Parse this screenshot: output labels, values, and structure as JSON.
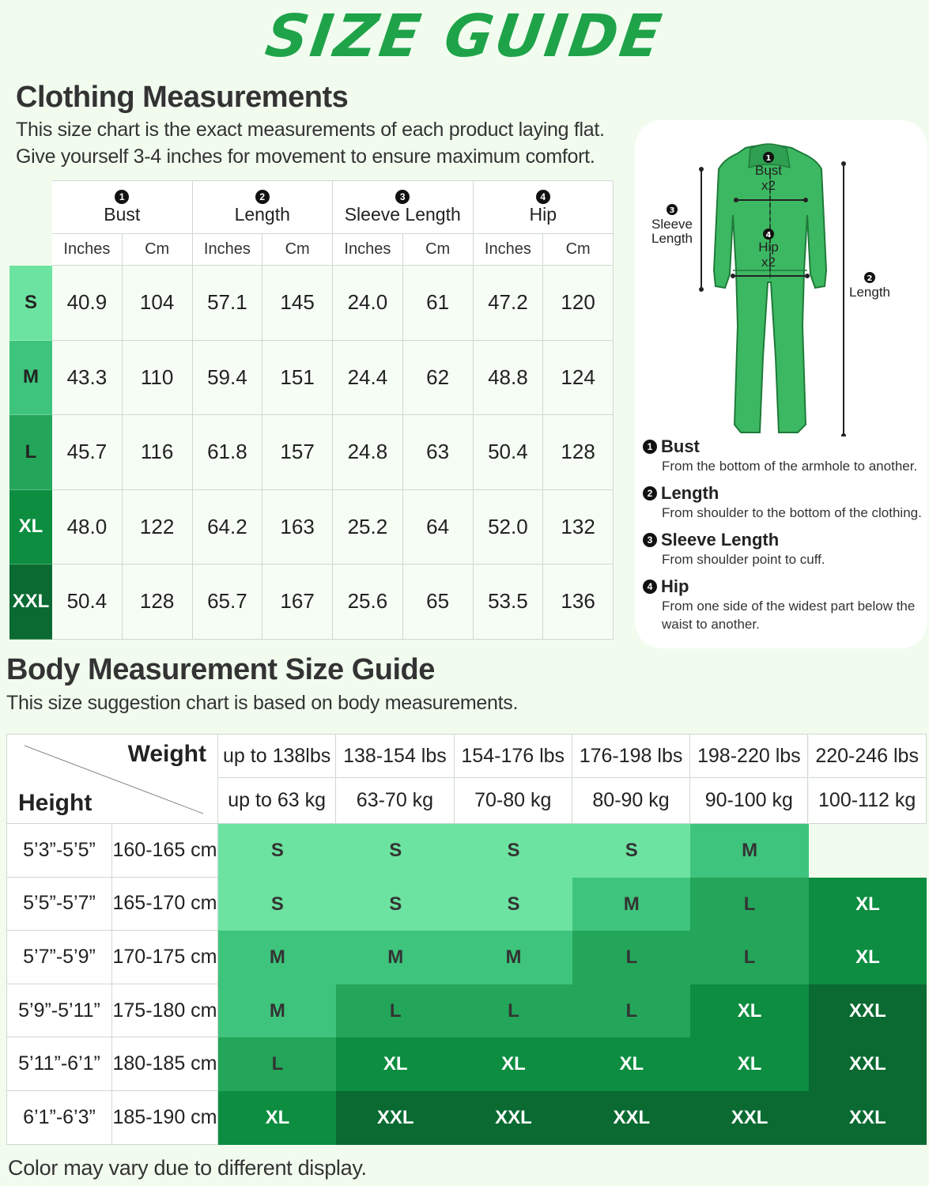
{
  "title": "SIZE GUIDE",
  "clothing": {
    "heading": "Clothing Measurements",
    "line1": "This size chart is the exact measurements of each product laying flat.",
    "line2": "Give yourself 3-4 inches for movement to ensure maximum comfort.",
    "groups": [
      {
        "num": "1",
        "label": "Bust"
      },
      {
        "num": "2",
        "label": "Length"
      },
      {
        "num": "3",
        "label": "Sleeve Length"
      },
      {
        "num": "4",
        "label": "Hip"
      }
    ],
    "units": [
      "Inches",
      "Cm",
      "Inches",
      "Cm",
      "Inches",
      "Cm",
      "Inches",
      "Cm"
    ],
    "rows": [
      {
        "size": "S",
        "color": "#6de3a1",
        "values": [
          "40.9",
          "104",
          "57.1",
          "145",
          "24.0",
          "61",
          "47.2",
          "120"
        ]
      },
      {
        "size": "M",
        "color": "#3ec47c",
        "values": [
          "43.3",
          "110",
          "59.4",
          "151",
          "24.4",
          "62",
          "48.8",
          "124"
        ]
      },
      {
        "size": "L",
        "color": "#24a65a",
        "values": [
          "45.7",
          "116",
          "61.8",
          "157",
          "24.8",
          "63",
          "50.4",
          "128"
        ]
      },
      {
        "size": "XL",
        "color": "#0c8d40",
        "values": [
          "48.0",
          "122",
          "64.2",
          "163",
          "25.2",
          "64",
          "52.0",
          "132"
        ]
      },
      {
        "size": "XXL",
        "color": "#0a6a31",
        "values": [
          "50.4",
          "128",
          "65.7",
          "167",
          "25.6",
          "65",
          "53.5",
          "136"
        ]
      }
    ]
  },
  "diagram": {
    "bust_label": "Bust",
    "bust_mult": "x2",
    "hip_label": "Hip",
    "hip_mult": "x2",
    "sleeve_label_1": "Sleeve",
    "sleeve_label_2": "Length",
    "length_label": "Length",
    "descriptions": [
      {
        "num": "1",
        "term": "Bust",
        "text": "From the bottom of the armhole to another."
      },
      {
        "num": "2",
        "term": "Length",
        "text": "From shoulder to the bottom of the clothing."
      },
      {
        "num": "3",
        "term": "Sleeve Length",
        "text": "From shoulder point to cuff."
      },
      {
        "num": "4",
        "term": "Hip",
        "text": "From one side of the widest part below the waist to another."
      }
    ]
  },
  "body": {
    "heading": "Body Measurement Size Guide",
    "line": "This size suggestion chart is based on body measurements.",
    "weight_label": "Weight",
    "height_label": "Height",
    "weights_lbs": [
      "up to 138lbs",
      "138-154 lbs",
      "154-176 lbs",
      "176-198 lbs",
      "198-220 lbs",
      "220-246 lbs"
    ],
    "weights_kg": [
      "up to 63 kg",
      "63-70 kg",
      "70-80 kg",
      "80-90 kg",
      "90-100 kg",
      "100-112 kg"
    ],
    "rows": [
      {
        "ft": "5’3”-5’5”",
        "cm": "160-165 cm",
        "sizes": [
          "S",
          "S",
          "S",
          "S",
          "M",
          ""
        ]
      },
      {
        "ft": "5’5”-5’7”",
        "cm": "165-170 cm",
        "sizes": [
          "S",
          "S",
          "S",
          "M",
          "L",
          "XL"
        ]
      },
      {
        "ft": "5’7”-5’9”",
        "cm": "170-175 cm",
        "sizes": [
          "M",
          "M",
          "M",
          "L",
          "L",
          "XL"
        ]
      },
      {
        "ft": "5’9”-5’11”",
        "cm": "175-180 cm",
        "sizes": [
          "M",
          "L",
          "L",
          "L",
          "XL",
          "XXL"
        ]
      },
      {
        "ft": "5’11”-6’1”",
        "cm": "180-185 cm",
        "sizes": [
          "L",
          "XL",
          "XL",
          "XL",
          "XL",
          "XXL"
        ]
      },
      {
        "ft": "6’1”-6’3”",
        "cm": "185-190 cm",
        "sizes": [
          "XL",
          "XXL",
          "XXL",
          "XXL",
          "XXL",
          "XXL"
        ]
      }
    ],
    "size_colors": {
      "S": "#6de3a1",
      "M": "#3ec47c",
      "L": "#24a65a",
      "XL": "#0c8d40",
      "XXL": "#0a6a31",
      "": "#f1fcef"
    },
    "size_text_colors": {
      "S": "#333333",
      "M": "#333333",
      "L": "#333333",
      "XL": "#ffffff",
      "XXL": "#ffffff",
      "": "#333333"
    }
  },
  "footer": "Color may vary due to different display."
}
